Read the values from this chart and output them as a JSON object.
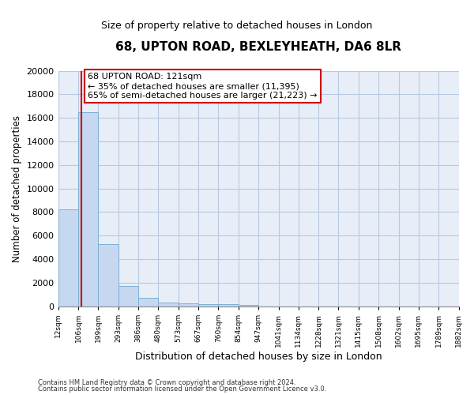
{
  "title_line1": "68, UPTON ROAD, BEXLEYHEATH, DA6 8LR",
  "title_line2": "Size of property relative to detached houses in London",
  "xlabel": "Distribution of detached houses by size in London",
  "ylabel": "Number of detached properties",
  "bar_color": "#c5d8f0",
  "bar_edge_color": "#7bafd4",
  "grid_color": "#b8c8e0",
  "background_color": "#e8eef8",
  "annotation_box_color": "#ffffff",
  "annotation_border_color": "#cc0000",
  "vline_color": "#cc0000",
  "annotation_line1": "68 UPTON ROAD: 121sqm",
  "annotation_line2": "← 35% of detached houses are smaller (11,395)",
  "annotation_line3": "65% of semi-detached houses are larger (21,223) →",
  "property_size_sqm": 121,
  "bin_edges": [
    12,
    106,
    199,
    293,
    386,
    480,
    573,
    667,
    760,
    854,
    947,
    1041,
    1134,
    1228,
    1321,
    1415,
    1508,
    1602,
    1695,
    1789,
    1882
  ],
  "bin_labels": [
    "12sqm",
    "106sqm",
    "199sqm",
    "293sqm",
    "386sqm",
    "480sqm",
    "573sqm",
    "667sqm",
    "760sqm",
    "854sqm",
    "947sqm",
    "1041sqm",
    "1134sqm",
    "1228sqm",
    "1321sqm",
    "1415sqm",
    "1508sqm",
    "1602sqm",
    "1695sqm",
    "1789sqm",
    "1882sqm"
  ],
  "bar_heights": [
    8200,
    16500,
    5300,
    1750,
    700,
    350,
    275,
    215,
    190,
    140,
    0,
    0,
    0,
    0,
    0,
    0,
    0,
    0,
    0,
    0
  ],
  "ylim": [
    0,
    20000
  ],
  "yticks": [
    0,
    2000,
    4000,
    6000,
    8000,
    10000,
    12000,
    14000,
    16000,
    18000,
    20000
  ],
  "footer_line1": "Contains HM Land Registry data © Crown copyright and database right 2024.",
  "footer_line2": "Contains public sector information licensed under the Open Government Licence v3.0.",
  "figsize": [
    6.0,
    5.0
  ],
  "dpi": 100
}
